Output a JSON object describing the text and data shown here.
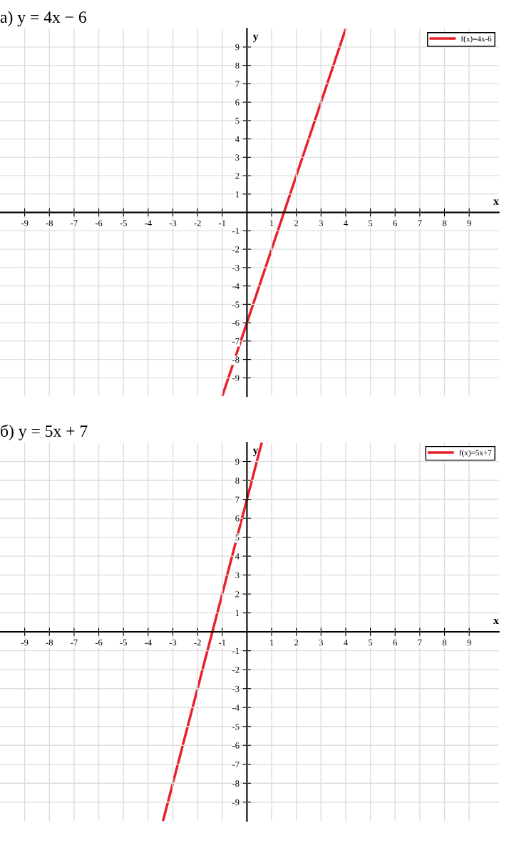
{
  "chart_data": [
    {
      "type": "line",
      "title": "а) y = 4x − 6",
      "xlabel": "x",
      "ylabel": "y",
      "x": [
        -1,
        4
      ],
      "xlim": [
        -10,
        10.2
      ],
      "ylim": [
        -10,
        10
      ],
      "xticks": [
        -9,
        -8,
        -7,
        -6,
        -5,
        -4,
        -3,
        -2,
        -1,
        1,
        2,
        3,
        4,
        5,
        6,
        7,
        8,
        9
      ],
      "yticks": [
        -9,
        -8,
        -7,
        -6,
        -5,
        -4,
        -3,
        -2,
        -1,
        1,
        2,
        3,
        4,
        5,
        6,
        7,
        8,
        9
      ],
      "grid": true,
      "legend": "top right",
      "line_style": "solid",
      "series": [
        {
          "name": "f(x)=4x-6",
          "color": "#e8202a",
          "values": [
            -10,
            10
          ]
        }
      ]
    },
    {
      "type": "line",
      "title": "б) y = 5x + 7",
      "xlabel": "x",
      "ylabel": "y",
      "x": [
        -3.4,
        0.6
      ],
      "xlim": [
        -10,
        10.2
      ],
      "ylim": [
        -10,
        10
      ],
      "xticks": [
        -9,
        -8,
        -7,
        -6,
        -5,
        -4,
        -3,
        -2,
        -1,
        1,
        2,
        3,
        4,
        5,
        6,
        7,
        8,
        9
      ],
      "yticks": [
        -9,
        -8,
        -7,
        -6,
        -5,
        -4,
        -3,
        -2,
        -1,
        1,
        2,
        3,
        4,
        5,
        6,
        7,
        8,
        9
      ],
      "grid": true,
      "legend": "top right",
      "line_style": "solid",
      "series": [
        {
          "name": "f(x)=5x+7",
          "color": "#e8202a",
          "values": [
            -10,
            10
          ]
        }
      ]
    }
  ]
}
